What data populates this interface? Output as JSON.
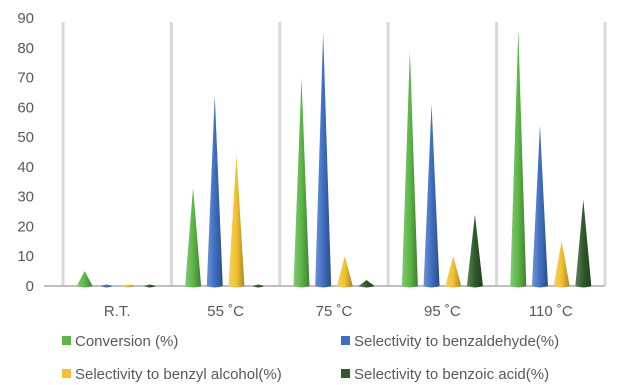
{
  "chart_data": {
    "type": "bar",
    "shape": "cone",
    "title": "",
    "xlabel": "",
    "ylabel": "",
    "ylim": [
      0,
      90
    ],
    "yticks": [
      0,
      10,
      20,
      30,
      40,
      50,
      60,
      70,
      80,
      90
    ],
    "grid": false,
    "legend_position": "bottom",
    "categories": [
      "R.T.",
      "55 ˚C",
      "75 ˚C",
      "95 ˚C",
      "110 ˚C"
    ],
    "series": [
      {
        "name": "Conversion (%)",
        "color": "#5cb646",
        "values": [
          5,
          33,
          70,
          79,
          86
        ]
      },
      {
        "name": "Selectivity to benzaldehyde(%)",
        "color": "#3f6fc2",
        "values": [
          0.5,
          64,
          85,
          61,
          54
        ]
      },
      {
        "name": "Selectivity to benzyl alcohol(%)",
        "color": "#f2c12e",
        "values": [
          0.5,
          44,
          10,
          10,
          15
        ]
      },
      {
        "name": "Selectivity to benzoic acid(%)",
        "color": "#2f5a2a",
        "values": [
          0.5,
          0.5,
          2,
          24,
          29
        ]
      }
    ]
  }
}
